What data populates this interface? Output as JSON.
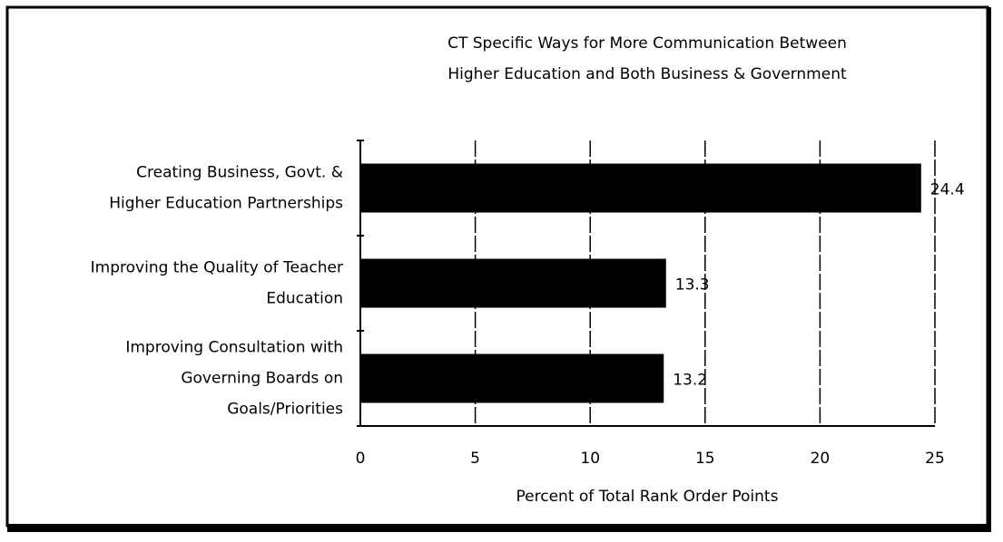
{
  "chart_data": {
    "type": "barh",
    "title": [
      "CT   Specific Ways for More Communication Between",
      "Higher Education and Both Business & Government"
    ],
    "categories": [
      [
        "Creating Business, Govt. &",
        "Higher Education Partnerships"
      ],
      [
        "Improving the Quality of Teacher",
        "Education"
      ],
      [
        "Improving Consultation with",
        "Governing Boards on",
        "Goals/Priorities"
      ]
    ],
    "values": [
      24.4,
      13.3,
      13.2
    ],
    "color": "#000000",
    "xlabel": "Percent of Total Rank Order Points",
    "xlim": [
      0,
      25
    ],
    "xticks": [
      0,
      5,
      10,
      15,
      20,
      25
    ],
    "grid": true
  }
}
